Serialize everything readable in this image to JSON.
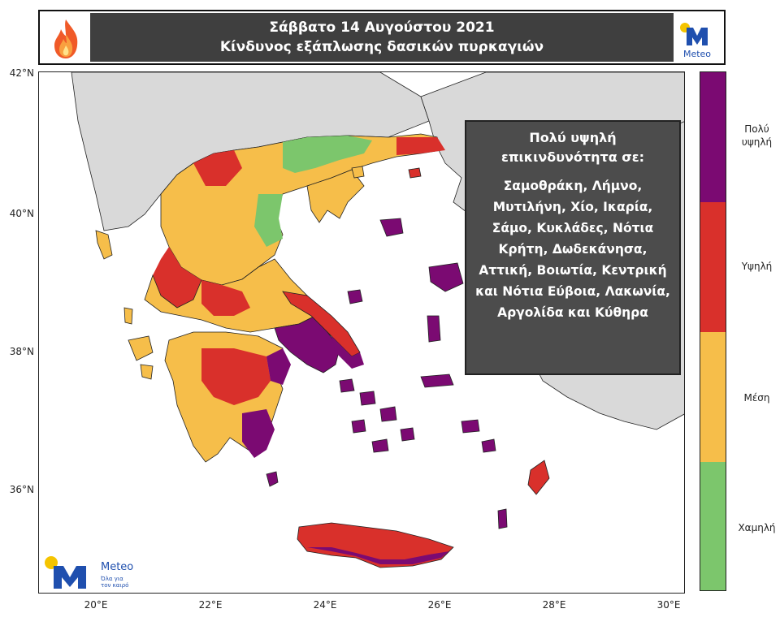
{
  "header": {
    "date_line": "Σάββατο 14 Αυγούστου 2021",
    "title_line": "Κίνδυνος εξάπλωσης δασικών πυρκαγιών"
  },
  "brand": {
    "top_logo_text": "Meteo",
    "bottom_logo_text": "Meteo",
    "bottom_slogan_1": "Όλα για",
    "bottom_slogan_2": "τον καιρό"
  },
  "axes": {
    "lat_labels": [
      "42°N",
      "40°N",
      "38°N",
      "36°N"
    ],
    "lon_labels": [
      "20°E",
      "22°E",
      "24°E",
      "26°E",
      "28°E",
      "30°E"
    ]
  },
  "info_box": {
    "title": "Πολύ υψηλή επικινδυνότητα σε:",
    "areas": "Σαμοθράκη, Λήμνο, Μυτιλήνη, Χίο, Ικαρία, Σάμο, Κυκλάδες, Νότια Κρήτη, Δωδεκάνησα, Αττική, Βοιωτία, Κεντρική και Νότια Εύβοια, Λακωνία, Αργολίδα και Κύθηρα"
  },
  "legend": {
    "levels": [
      {
        "label_1": "Πολύ",
        "label_2": "υψηλή",
        "color": "#7b0a72"
      },
      {
        "label_1": "Υψηλή",
        "label_2": "",
        "color": "#d9302b"
      },
      {
        "label_1": "Μέση",
        "label_2": "",
        "color": "#f6be4a"
      },
      {
        "label_1": "Χαμηλή",
        "label_2": "",
        "color": "#7cc66c"
      }
    ]
  },
  "colors": {
    "land_neighbor": "#d9d9d9",
    "sea": "#ffffff",
    "very_high": "#7b0a72",
    "high": "#d9302b",
    "medium": "#f6be4a",
    "low": "#7cc66c",
    "meteo_blue": "#1f4fae",
    "meteo_yellow": "#f5c400"
  },
  "icons": {
    "fire": "fire-icon",
    "meteo": "meteo-logo-icon"
  }
}
